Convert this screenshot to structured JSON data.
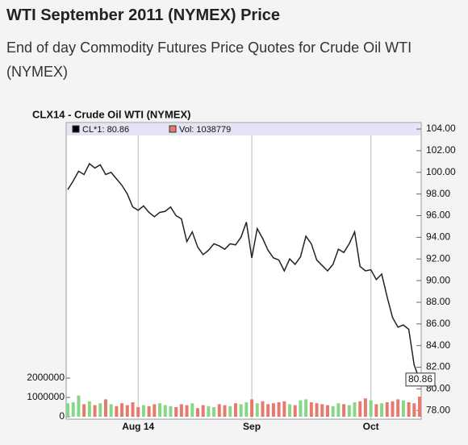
{
  "page": {
    "heading": "WTI September 2011 (NYMEX) Price",
    "subheading": "End of day Commodity Futures Price Quotes for Crude Oil WTI (NYMEX)"
  },
  "chart_data": {
    "type": "line",
    "title": "CLX14 - Crude Oil WTI (NYMEX)",
    "categories": [
      null,
      null,
      null,
      null,
      null,
      null,
      null,
      null,
      null,
      null,
      null,
      null,
      null,
      "Aug 14",
      null,
      null,
      null,
      null,
      null,
      null,
      null,
      null,
      null,
      null,
      null,
      null,
      null,
      null,
      null,
      null,
      null,
      null,
      null,
      null,
      "Sep",
      null,
      null,
      null,
      null,
      null,
      null,
      null,
      null,
      null,
      null,
      null,
      null,
      null,
      null,
      null,
      null,
      null,
      null,
      null,
      null,
      null,
      "Oct",
      null,
      null,
      null,
      null,
      null,
      null,
      null,
      null,
      null
    ],
    "series": [
      {
        "name": "CL*1: 80.86",
        "color": "#222222",
        "values": [
          98.4,
          99.2,
          100.1,
          99.8,
          100.8,
          100.4,
          100.7,
          99.8,
          100.0,
          99.4,
          98.8,
          98.0,
          96.8,
          96.5,
          96.9,
          96.3,
          95.9,
          96.3,
          96.4,
          96.8,
          96.0,
          95.7,
          93.6,
          94.5,
          93.1,
          92.4,
          92.8,
          93.4,
          93.2,
          92.9,
          93.4,
          93.3,
          94.0,
          95.4,
          92.1,
          94.8,
          93.9,
          92.8,
          92.1,
          91.9,
          90.9,
          92.0,
          91.5,
          92.2,
          94.1,
          93.4,
          91.9,
          91.4,
          90.9,
          91.5,
          92.9,
          92.6,
          93.4,
          94.5,
          91.3,
          90.9,
          91.0,
          90.1,
          90.6,
          88.5,
          86.6,
          85.7,
          85.9,
          85.5,
          82.2,
          80.86
        ]
      },
      {
        "name": "Vol: 1038779",
        "axis": "y2",
        "type": "bar",
        "up_color": "#86d886",
        "down_color": "#e8796e",
        "color": "#e8796e",
        "values": [
          700000,
          750000,
          1100000,
          650000,
          800000,
          600000,
          700000,
          900000,
          650000,
          550000,
          700000,
          600000,
          750000,
          500000,
          600000,
          550000,
          650000,
          700000,
          600000,
          550000,
          500000,
          650000,
          600000,
          700000,
          450000,
          600000,
          550000,
          500000,
          650000,
          600000,
          550000,
          700000,
          650000,
          750000,
          900000,
          700000,
          800000,
          650000,
          700000,
          750000,
          800000,
          650000,
          600000,
          850000,
          900000,
          750000,
          700000,
          650000,
          600000,
          550000,
          700000,
          650000,
          600000,
          750000,
          800000,
          950000,
          850000,
          650000,
          700000,
          750000,
          800000,
          900000,
          850000,
          750000,
          700000,
          1038779
        ]
      }
    ],
    "ylim": [
      77.2,
      104.6
    ],
    "yticks": [
      {
        "value": 78,
        "label": "78.00"
      },
      {
        "value": 80,
        "label": "80.00"
      },
      {
        "value": 82,
        "label": "82.00"
      },
      {
        "value": 84,
        "label": "84.00"
      },
      {
        "value": 86,
        "label": "86.00"
      },
      {
        "value": 88,
        "label": "88.00"
      },
      {
        "value": 90,
        "label": "90.00"
      },
      {
        "value": 92,
        "label": "92.00"
      },
      {
        "value": 94,
        "label": "94.00"
      },
      {
        "value": 96,
        "label": "96.00"
      },
      {
        "value": 98,
        "label": "98.00"
      },
      {
        "value": 100,
        "label": "100.00"
      },
      {
        "value": 102,
        "label": "102.00"
      },
      {
        "value": 104,
        "label": "104.00"
      }
    ],
    "y2lim": [
      0,
      2000000
    ],
    "y2ticks": [
      0,
      1000000,
      2000000
    ],
    "grid": true
  }
}
